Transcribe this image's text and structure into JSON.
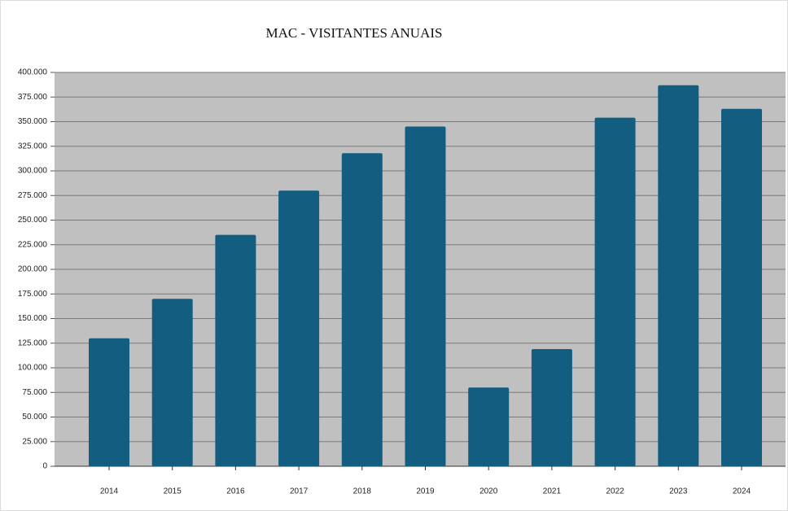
{
  "chart_data": {
    "type": "bar",
    "title": "MAC - VISITANTES ANUAIS",
    "categories": [
      "2014",
      "2015",
      "2016",
      "2017",
      "2018",
      "2019",
      "2020",
      "2021",
      "2022",
      "2023",
      "2024"
    ],
    "values": [
      130000,
      170000,
      235000,
      280000,
      318000,
      345000,
      80000,
      119000,
      354000,
      387000,
      363000
    ],
    "color": "#135e80",
    "ylim": [
      0,
      400000
    ],
    "yticks": [
      0,
      {
        "value": 25000,
        "label": "25.000"
      },
      {
        "value": 50000,
        "label": "50.000"
      },
      {
        "value": 75000,
        "label": "75.000"
      },
      {
        "value": 100000,
        "label": "100.000"
      },
      {
        "value": 125000,
        "label": "125.000"
      },
      {
        "value": 150000,
        "label": "150.000"
      },
      {
        "value": 175000,
        "label": "175.000"
      },
      {
        "value": 200000,
        "label": "200.000"
      },
      {
        "value": 225000,
        "label": "225.000"
      },
      {
        "value": 250000,
        "label": "250.000"
      },
      {
        "value": 275000,
        "label": "275.000"
      },
      {
        "value": 300000,
        "label": "300.000"
      },
      {
        "value": 325000,
        "label": "325.000"
      },
      {
        "value": 350000,
        "label": "350.000"
      },
      {
        "value": 375000,
        "label": "375.000"
      },
      {
        "value": 400000,
        "label": "400.000"
      }
    ],
    "grid": true
  }
}
